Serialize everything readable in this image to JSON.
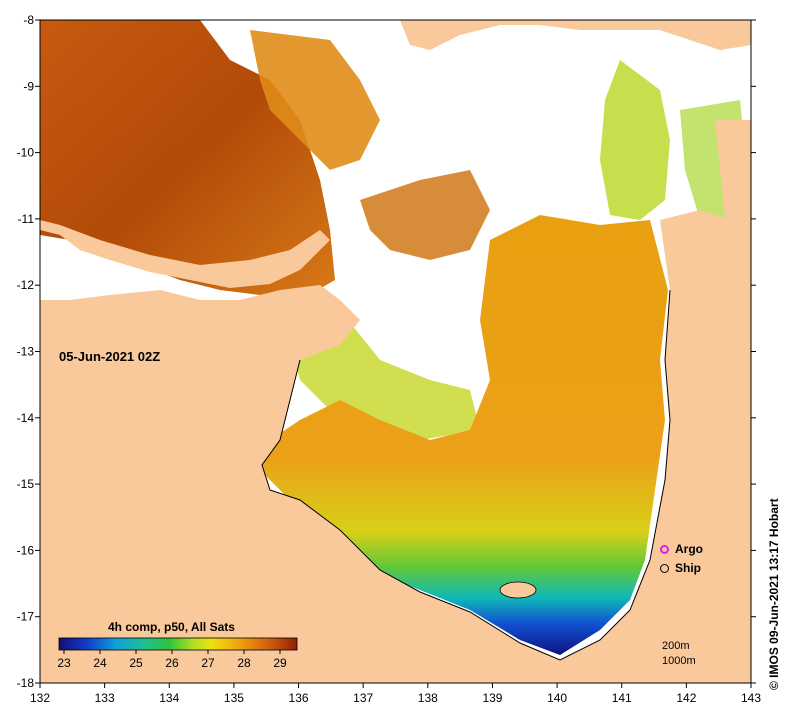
{
  "map": {
    "date_label": "05-Jun-2021 02Z",
    "lon_ticks": [
      "132",
      "133",
      "134",
      "135",
      "136",
      "137",
      "138",
      "139",
      "140",
      "141",
      "142",
      "143"
    ],
    "lat_ticks": [
      "-8",
      "-9",
      "-10",
      "-11",
      "-12",
      "-13",
      "-14",
      "-15",
      "-16",
      "-17",
      "-18"
    ],
    "colorbar": {
      "title": "4h comp, p50, All Sats",
      "ticks": [
        "23",
        "24",
        "25",
        "26",
        "27",
        "28",
        "29"
      ],
      "colors": [
        "#1a0a7a",
        "#1040c8",
        "#10a0d8",
        "#20c090",
        "#30c040",
        "#a8e020",
        "#f0e010",
        "#f0a010",
        "#d06010",
        "#902008"
      ]
    },
    "legend": [
      {
        "label": "Argo",
        "color": "#e020e0",
        "icon": "argo-marker-icon"
      },
      {
        "label": "Ship",
        "color": "#000000",
        "icon": "ship-marker-icon"
      }
    ],
    "depth_contours": [
      "200m",
      "1000m"
    ],
    "credit": "© IMOS 09-Jun-2021 13:17 Hobart",
    "colors": {
      "land": "#f9c89b",
      "cloud": "#ffffff",
      "frame": "#000000"
    }
  }
}
